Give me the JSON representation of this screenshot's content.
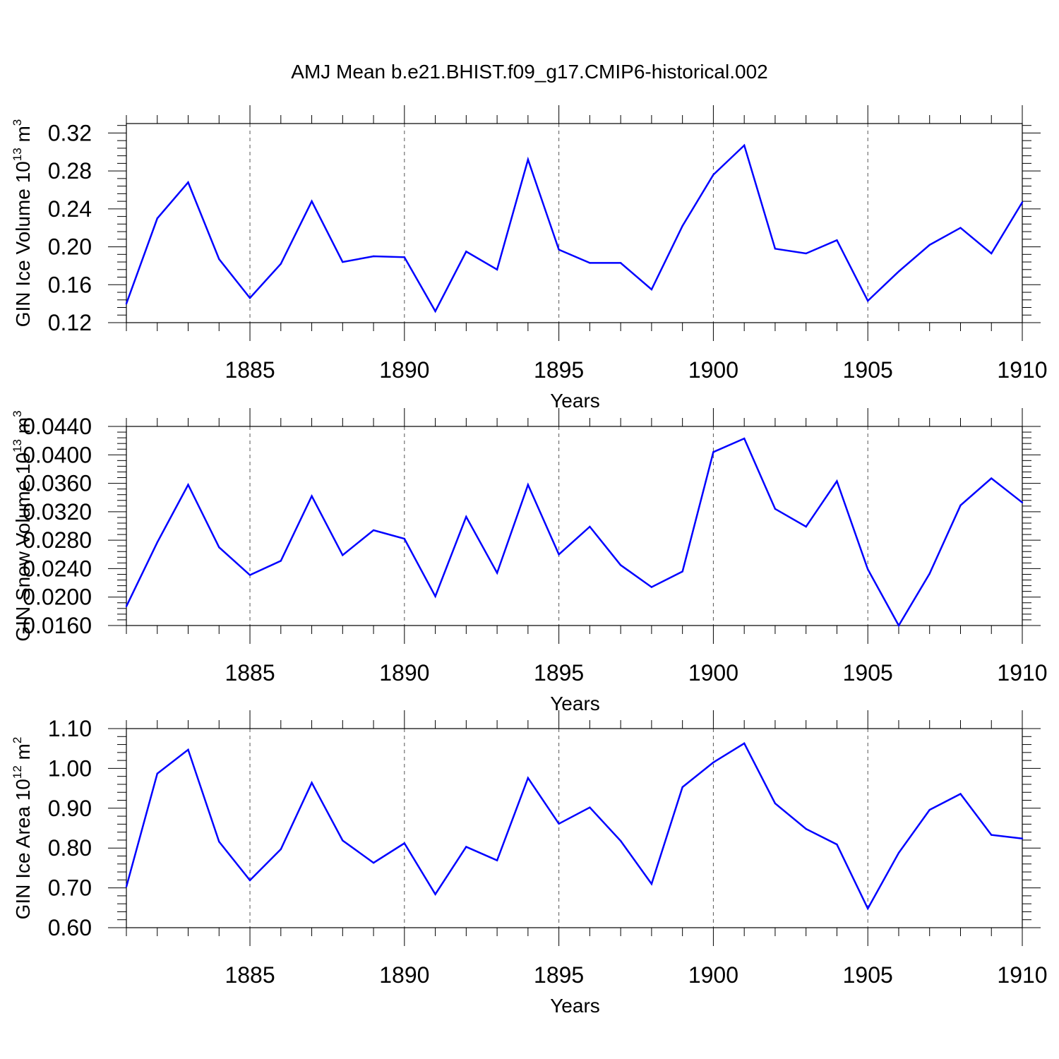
{
  "title": "AMJ Mean b.e21.BHIST.f09_g17.CMIP6-historical.002",
  "colors": {
    "line": "#0000ff",
    "axis": "#000000",
    "grid": "#555555"
  },
  "chart_data": [
    {
      "type": "line",
      "ylabel_main": "GIN Ice Volume 10",
      "ylabel_sup": "13",
      "ylabel_unit": " m",
      "ylabel_unit_sup": "3",
      "xlabel": "Years",
      "xlim": [
        1881,
        1910
      ],
      "ylim": [
        0.12,
        0.33
      ],
      "yticks": [
        "0.12",
        "0.16",
        "0.20",
        "0.24",
        "0.28",
        "0.32"
      ],
      "xticks": [
        "1885",
        "1890",
        "1895",
        "1900",
        "1905",
        "1910"
      ],
      "series": [
        {
          "name": "GIN Ice Volume",
          "x": [
            1881,
            1882,
            1883,
            1884,
            1885,
            1886,
            1887,
            1888,
            1889,
            1890,
            1891,
            1892,
            1893,
            1894,
            1895,
            1896,
            1897,
            1898,
            1899,
            1900,
            1901,
            1902,
            1903,
            1904,
            1905,
            1906,
            1907,
            1908,
            1909,
            1910
          ],
          "values": [
            0.14,
            0.23,
            0.268,
            0.187,
            0.146,
            0.182,
            0.248,
            0.184,
            0.19,
            0.189,
            0.132,
            0.195,
            0.176,
            0.292,
            0.197,
            0.183,
            0.183,
            0.155,
            0.222,
            0.276,
            0.307,
            0.198,
            0.193,
            0.207,
            0.143,
            0.174,
            0.202,
            0.22,
            0.193,
            0.247
          ]
        }
      ]
    },
    {
      "type": "line",
      "ylabel_main": "GIN Snow Volume 10",
      "ylabel_sup": "13",
      "ylabel_unit": " m",
      "ylabel_unit_sup": "3",
      "xlabel": "Years",
      "xlim": [
        1881,
        1910
      ],
      "ylim": [
        0.016,
        0.044
      ],
      "yticks": [
        "0.0160",
        "0.0200",
        "0.0240",
        "0.0280",
        "0.0320",
        "0.0360",
        "0.0400",
        "0.0440"
      ],
      "xticks": [
        "1885",
        "1890",
        "1895",
        "1900",
        "1905",
        "1910"
      ],
      "series": [
        {
          "name": "GIN Snow Volume",
          "x": [
            1881,
            1882,
            1883,
            1884,
            1885,
            1886,
            1887,
            1888,
            1889,
            1890,
            1891,
            1892,
            1893,
            1894,
            1895,
            1896,
            1897,
            1898,
            1899,
            1900,
            1901,
            1902,
            1903,
            1904,
            1905,
            1906,
            1907,
            1908,
            1909,
            1910
          ],
          "values": [
            0.0187,
            0.0277,
            0.0358,
            0.027,
            0.0231,
            0.0251,
            0.0342,
            0.0259,
            0.0294,
            0.0282,
            0.0201,
            0.0313,
            0.0234,
            0.0358,
            0.026,
            0.0299,
            0.0245,
            0.0214,
            0.0236,
            0.0404,
            0.0423,
            0.0324,
            0.0299,
            0.0363,
            0.0239,
            0.016,
            0.0233,
            0.0329,
            0.0367,
            0.0333
          ]
        }
      ]
    },
    {
      "type": "line",
      "ylabel_main": "GIN Ice Area 10",
      "ylabel_sup": "12",
      "ylabel_unit": " m",
      "ylabel_unit_sup": "2",
      "xlabel": "Years",
      "xlim": [
        1881,
        1910
      ],
      "ylim": [
        0.6,
        1.1
      ],
      "yticks": [
        "0.60",
        "0.70",
        "0.80",
        "0.90",
        "1.00",
        "1.10"
      ],
      "xticks": [
        "1885",
        "1890",
        "1895",
        "1900",
        "1905",
        "1910"
      ],
      "series": [
        {
          "name": "GIN Ice Area",
          "x": [
            1881,
            1882,
            1883,
            1884,
            1885,
            1886,
            1887,
            1888,
            1889,
            1890,
            1891,
            1892,
            1893,
            1894,
            1895,
            1896,
            1897,
            1898,
            1899,
            1900,
            1901,
            1902,
            1903,
            1904,
            1905,
            1906,
            1907,
            1908,
            1909,
            1910
          ],
          "values": [
            0.703,
            0.987,
            1.047,
            0.816,
            0.719,
            0.797,
            0.964,
            0.819,
            0.763,
            0.812,
            0.684,
            0.803,
            0.769,
            0.976,
            0.861,
            0.902,
            0.818,
            0.71,
            0.953,
            1.015,
            1.063,
            0.912,
            0.848,
            0.809,
            0.648,
            0.788,
            0.896,
            0.936,
            0.833,
            0.824
          ]
        }
      ]
    }
  ]
}
